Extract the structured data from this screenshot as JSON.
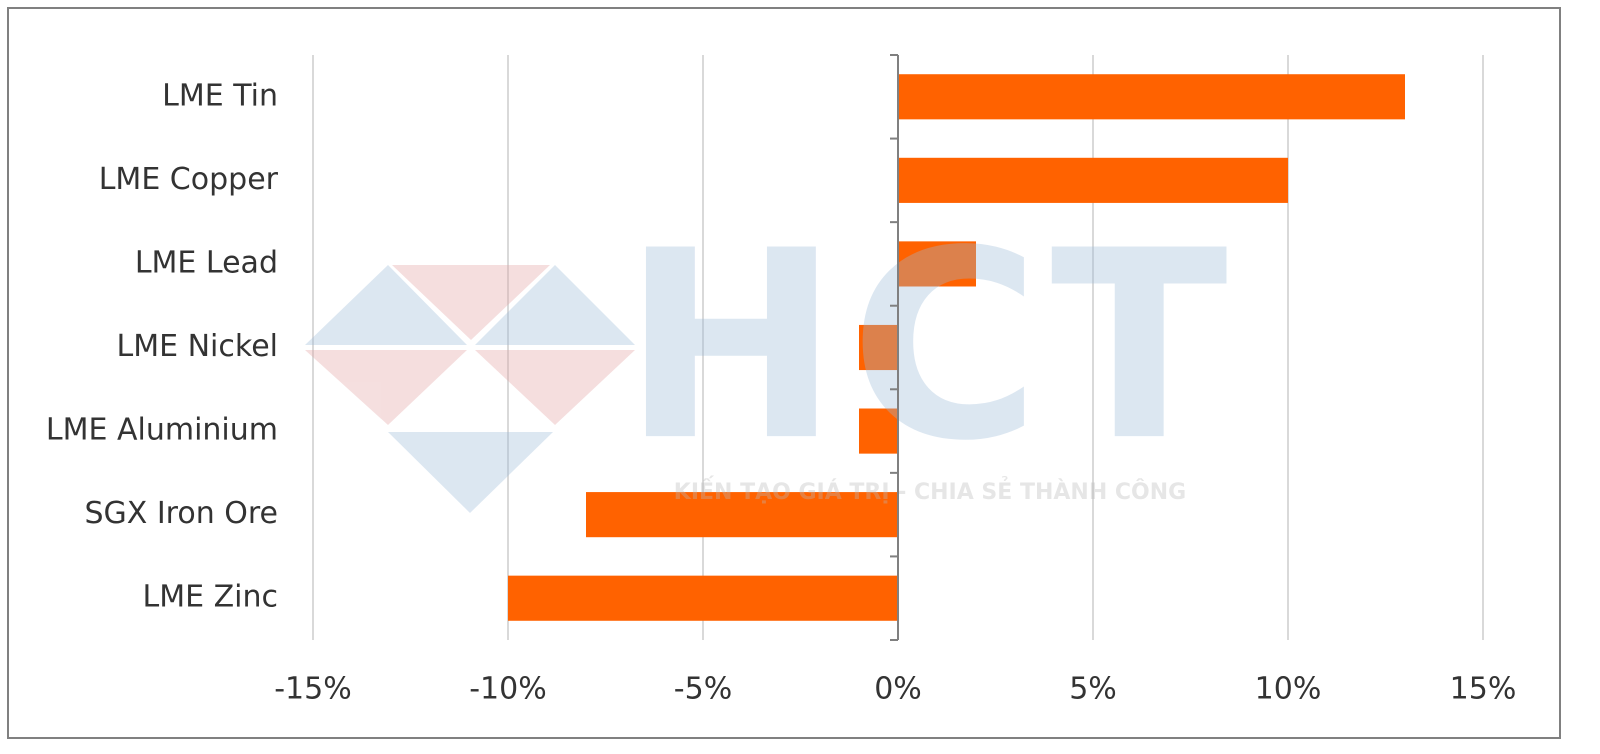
{
  "chart_data": {
    "type": "hbar",
    "categories": [
      "LME  Tin",
      "LME Copper",
      "LME Lead",
      "LME Nickel",
      "LME Aluminium",
      "SGX Iron Ore",
      "LME Zinc"
    ],
    "values": [
      13,
      10,
      2,
      -1,
      -1,
      -8,
      -10
    ],
    "color": "#ff6200",
    "xlim": [
      -15,
      15
    ],
    "xticks": [
      {
        "value": -15,
        "label": "-15%"
      },
      {
        "value": -10,
        "label": "-10%"
      },
      {
        "value": -5,
        "label": "-5%"
      },
      {
        "value": 0,
        "label": "0%"
      },
      {
        "value": 5,
        "label": "5%"
      },
      {
        "value": 10,
        "label": "10%"
      },
      {
        "value": 15,
        "label": "15%"
      }
    ],
    "grid": true
  },
  "watermark": {
    "logo": "HCT",
    "tagline": "KIẾN TẠO GIÁ TRỊ - CHIA SẺ THÀNH CÔNG"
  }
}
